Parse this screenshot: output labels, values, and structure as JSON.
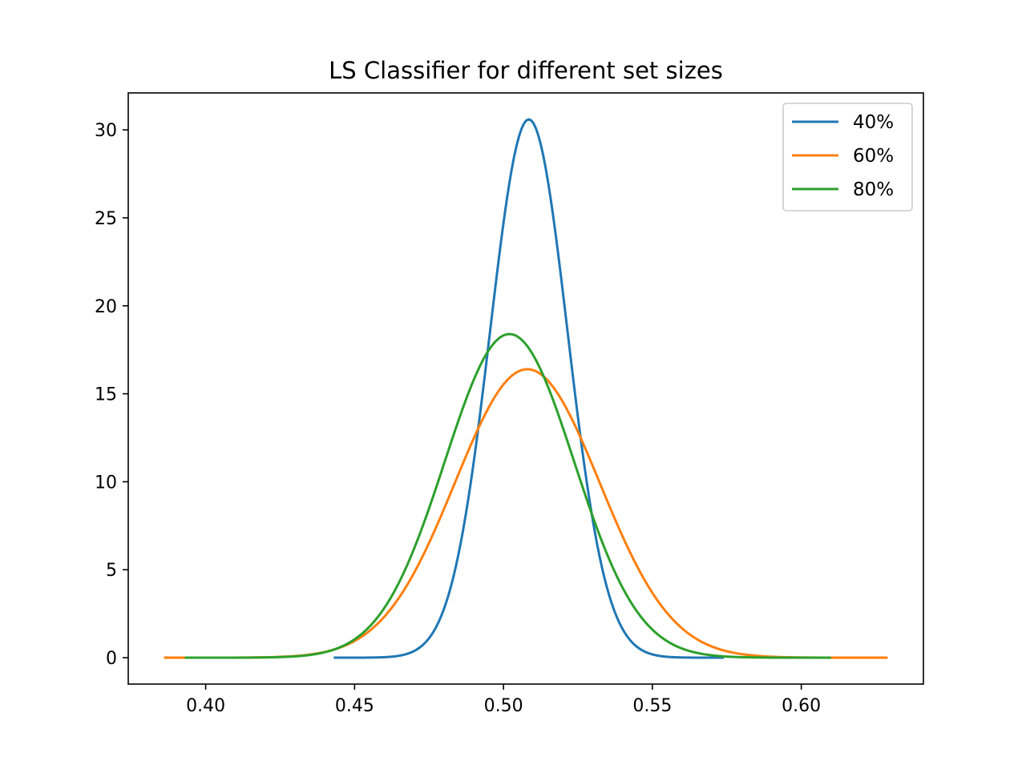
{
  "chart_data": {
    "type": "line",
    "title": "LS Classifier for different set sizes",
    "xlabel": "",
    "ylabel": "",
    "xlim": [
      0.374,
      0.641
    ],
    "ylim": [
      -1.5,
      32.1
    ],
    "xticks": [
      0.4,
      0.45,
      0.5,
      0.55,
      0.6
    ],
    "xtick_labels": [
      "0.40",
      "0.45",
      "0.50",
      "0.55",
      "0.60"
    ],
    "yticks": [
      0,
      5,
      10,
      15,
      20,
      25,
      30
    ],
    "ytick_labels": [
      "0",
      "5",
      "10",
      "15",
      "20",
      "25",
      "30"
    ],
    "grid": false,
    "legend_position": "top-right",
    "series": [
      {
        "name": "40%",
        "color": "#1f77b4",
        "shape": "normal",
        "mean": 0.5085,
        "std": 0.013,
        "peak": 30.6,
        "x_range": [
          0.443,
          0.574
        ]
      },
      {
        "name": "60%",
        "color": "#ff7f0e",
        "shape": "normal",
        "mean": 0.508,
        "std": 0.0243,
        "peak": 16.4,
        "x_range": [
          0.386,
          0.629
        ]
      },
      {
        "name": "80%",
        "color": "#2ca02c",
        "shape": "normal",
        "mean": 0.502,
        "std": 0.0217,
        "peak": 18.4,
        "x_range": [
          0.393,
          0.61
        ]
      }
    ]
  }
}
